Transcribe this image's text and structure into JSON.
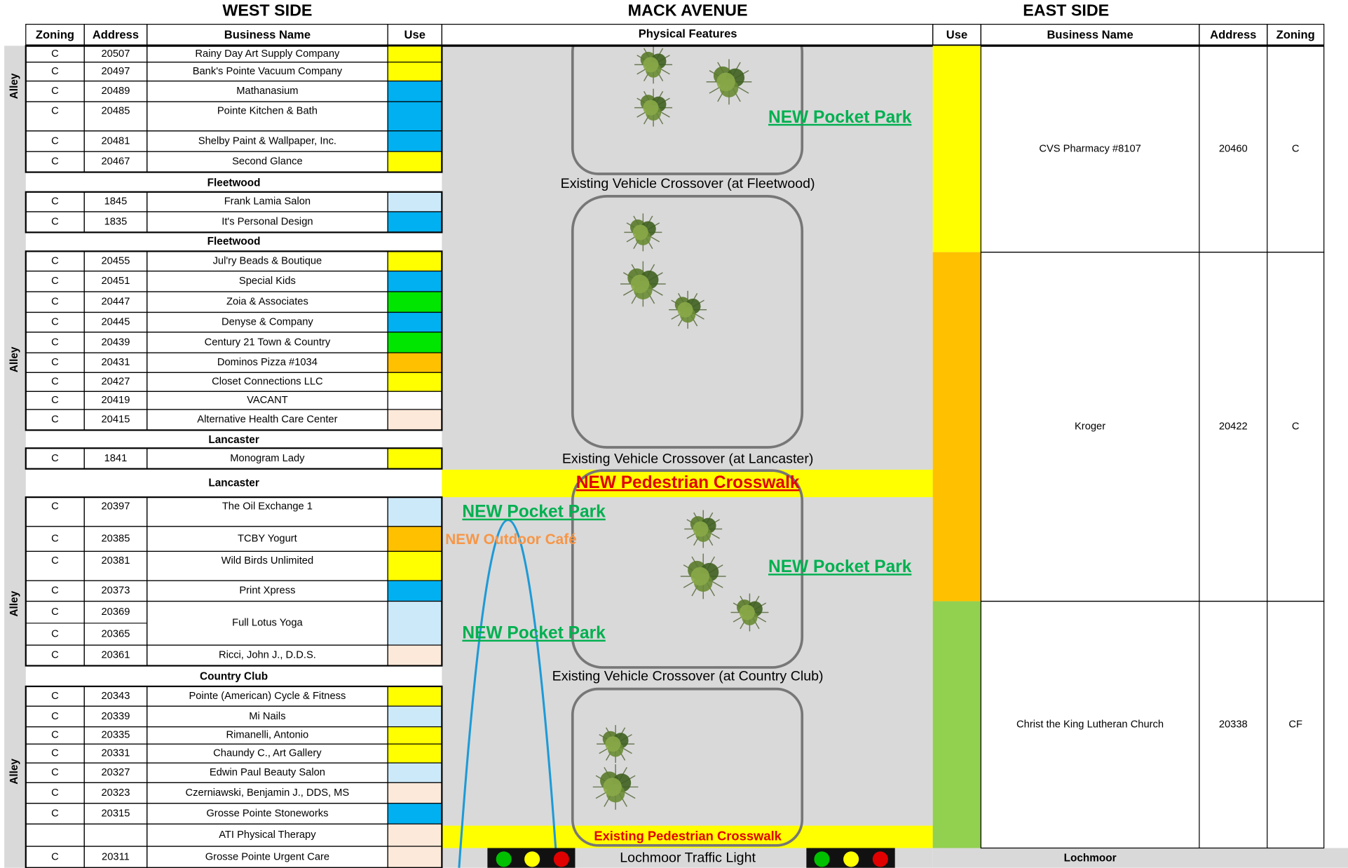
{
  "headers": {
    "west": "WEST SIDE",
    "middle": "MACK AVENUE",
    "east": "EAST SIDE",
    "physical_features": "Physical Features"
  },
  "west": {
    "columns": [
      "Zoning",
      "Address",
      "Business Name",
      "Use"
    ],
    "alley_labels": [
      "Alley",
      "Alley",
      "Alley",
      "Alley"
    ],
    "streets": [
      "Fleetwood",
      "Fleetwood",
      "Lancaster",
      "Lancaster",
      "Country Club"
    ],
    "blocks": [
      {
        "rows": [
          {
            "zoning": "C",
            "address": "20507",
            "name": "Rainy Day Art Supply Company",
            "use": "#ffff00"
          },
          {
            "zoning": "C",
            "address": "20497",
            "name": "Bank's Pointe Vacuum Company",
            "use": "#ffff00"
          },
          {
            "zoning": "C",
            "address": "20489",
            "name": "Mathanasium",
            "use": "#00b0f0"
          },
          {
            "zoning": "C",
            "address": "20485",
            "name": "Pointe Kitchen & Bath",
            "use": "#00b0f0"
          },
          {
            "zoning": "C",
            "address": "20481",
            "name": "Shelby Paint & Wallpaper, Inc.",
            "use": "#00b0f0"
          },
          {
            "zoning": "C",
            "address": "20467",
            "name": "Second Glance",
            "use": "#ffff00"
          }
        ]
      },
      {
        "rows": [
          {
            "zoning": "C",
            "address": "1845",
            "name": "Frank Lamia Salon",
            "use": "#cce9f9"
          },
          {
            "zoning": "C",
            "address": "1835",
            "name": "It's Personal Design",
            "use": "#00b0f0"
          }
        ]
      },
      {
        "rows": [
          {
            "zoning": "C",
            "address": "20455",
            "name": "Jul'ry Beads & Boutique",
            "use": "#ffff00"
          },
          {
            "zoning": "C",
            "address": "20451",
            "name": "Special Kids",
            "use": "#00b0f0"
          },
          {
            "zoning": "C",
            "address": "20447",
            "name": "Zoia & Associates",
            "use": "#00e600"
          },
          {
            "zoning": "C",
            "address": "20445",
            "name": "Denyse & Company",
            "use": "#00b0f0"
          },
          {
            "zoning": "C",
            "address": "20439",
            "name": "Century 21 Town & Country",
            "use": "#00e600"
          },
          {
            "zoning": "C",
            "address": "20431",
            "name": "Dominos Pizza  #1034",
            "use": "#ffc000"
          },
          {
            "zoning": "C",
            "address": "20427",
            "name": "Closet Connections LLC",
            "use": "#ffff00"
          },
          {
            "zoning": "C",
            "address": "20419",
            "name": "VACANT",
            "use": "#ffffff"
          },
          {
            "zoning": "C",
            "address": "20415",
            "name": "Alternative Health Care Center",
            "use": "#fde9d9"
          }
        ]
      },
      {
        "rows": [
          {
            "zoning": "C",
            "address": "1841",
            "name": "Monogram Lady",
            "use": "#ffff00"
          }
        ]
      },
      {
        "rows": [
          {
            "zoning": "C",
            "address": "20397",
            "name": "The Oil Exchange 1",
            "use": "#cce9f9"
          },
          {
            "zoning": "C",
            "address": "20385",
            "name": "TCBY Yogurt",
            "use": "#ffc000"
          },
          {
            "zoning": "C",
            "address": "20381",
            "name": "Wild Birds Unlimited",
            "use": "#ffff00"
          },
          {
            "zoning": "C",
            "address": "20373",
            "name": "Print Xpress",
            "use": "#00b0f0"
          },
          {
            "zoning": [
              "C",
              "C"
            ],
            "address": [
              "20369",
              "20365"
            ],
            "name": "Full Lotus Yoga",
            "use": "#cce9f9"
          },
          {
            "zoning": "C",
            "address": "20361",
            "name": "Ricci, John J., D.D.S.",
            "use": "#fde9d9"
          }
        ]
      },
      {
        "rows": [
          {
            "zoning": "C",
            "address": "20343",
            "name": "Pointe (American) Cycle & Fitness",
            "use": "#ffff00"
          },
          {
            "zoning": "C",
            "address": "20339",
            "name": "Mi Nails",
            "use": "#cce9f9"
          },
          {
            "zoning": "C",
            "address": "20335",
            "name": "Rimanelli, Antonio",
            "use": "#ffff00"
          },
          {
            "zoning": "C",
            "address": "20331",
            "name": "Chaundy C., Art Gallery",
            "use": "#ffff00"
          },
          {
            "zoning": "C",
            "address": "20327",
            "name": "Edwin Paul Beauty Salon",
            "use": "#cce9f9"
          },
          {
            "zoning": "C",
            "address": "20323",
            "name": "Czerniawski, Benjamin J., DDS, MS",
            "use": "#fde9d9"
          },
          {
            "zoning": "C",
            "address": "20315",
            "name": "Grosse Pointe Stoneworks",
            "use": "#00b0f0"
          },
          {
            "name": "ATI Physical Therapy",
            "use": "#fde9d9"
          },
          {
            "zoning": "C",
            "address": "20311",
            "name": "Grosse Pointe Urgent Care",
            "use": "#fde9d9"
          }
        ]
      }
    ]
  },
  "middle": {
    "crossovers": [
      "Existing Vehicle Crossover (at Fleetwood)",
      "Existing Vehicle Crossover (at Lancaster)",
      "Existing Vehicle Crossover (at Country Club)"
    ],
    "pocket_parks": [
      "NEW Pocket Park",
      "NEW Pocket Park",
      "NEW Pocket Park",
      "NEW Pocket Park"
    ],
    "outdoor_cafe": "NEW Outdoor Café",
    "new_crosswalk": "NEW Pedestrian Crosswalk",
    "existing_crosswalk": "Existing Pedestrian Crosswalk",
    "traffic_light": "Lochmoor Traffic Light"
  },
  "east": {
    "columns": [
      "Use",
      "Business Name",
      "Address",
      "Zoning"
    ],
    "rows": [
      {
        "use": "#ffff00",
        "name": "CVS Pharmacy #8107",
        "address": "20460",
        "zoning": "C"
      },
      {
        "use": "#ffc000",
        "name": "Kroger",
        "address": "20422",
        "zoning": "C"
      },
      {
        "use": "#92d050",
        "name": "Christ the King Lutheran Church",
        "address": "20338",
        "zoning": "CF"
      }
    ],
    "street": "Lochmoor"
  }
}
